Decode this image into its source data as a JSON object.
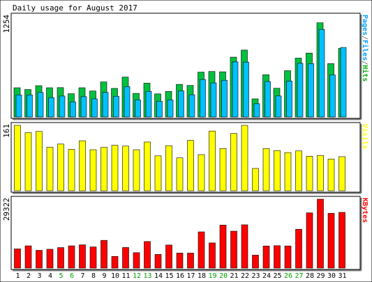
{
  "chart_data": {
    "type": "bar",
    "title": "Daily usage for August 2017",
    "categories": [
      "1",
      "2",
      "3",
      "4",
      "5",
      "6",
      "7",
      "8",
      "9",
      "10",
      "11",
      "12",
      "13",
      "14",
      "15",
      "16",
      "17",
      "18",
      "19",
      "20",
      "21",
      "22",
      "23",
      "24",
      "25",
      "26",
      "27",
      "28",
      "29",
      "30",
      "31"
    ],
    "weekend_days": [
      "5",
      "6",
      "12",
      "13",
      "19",
      "20",
      "26",
      "27"
    ],
    "panels": [
      {
        "id": "hits-panel",
        "ymax_label": "1254",
        "ymax": 1254,
        "legend": [
          {
            "text": "Pages",
            "color": "#00a0ff"
          },
          {
            "text": "/",
            "color": "#808080"
          },
          {
            "text": "Files",
            "color": "#00a0ff"
          },
          {
            "text": "/",
            "color": "#808080"
          },
          {
            "text": "Hits",
            "color": "#00b000"
          }
        ],
        "series": [
          {
            "name": "Hits",
            "color": "#00c040",
            "values": [
              363,
              341,
              389,
              363,
              365,
              289,
              363,
              323,
              435,
              355,
              496,
              293,
              420,
              287,
              318,
              405,
              392,
              557,
              565,
              561,
              743,
              831,
              225,
              525,
              357,
              575,
              731,
              794,
              1170,
              663,
              852
            ]
          },
          {
            "name": "Files",
            "color": "#00c0ff",
            "values": [
              274,
              274,
              305,
              241,
              260,
              188,
              252,
              225,
              305,
              257,
              377,
              212,
              318,
              195,
              212,
              325,
              276,
              466,
              423,
              456,
              684,
              682,
              165,
              441,
              261,
              447,
              667,
              663,
              1088,
              522,
              864
            ]
          }
        ]
      },
      {
        "id": "visits-panel",
        "ymax_label": "161",
        "ymax": 161,
        "legend": [
          {
            "text": "Visits",
            "color": "#ffff00"
          }
        ],
        "series": [
          {
            "name": "Visits",
            "color": "#ffff00",
            "values": [
              161,
              143,
              146,
              107,
              115,
              102,
              123,
              101,
              107,
              112,
              110,
              101,
              120,
              86,
              111,
              81,
              124,
              89,
              147,
              104,
              141,
              161,
              55,
              104,
              99,
              94,
              98,
              85,
              87,
              78,
              84
            ]
          }
        ]
      },
      {
        "id": "kbytes-panel",
        "ymax_label": "29322",
        "ymax": 29322,
        "legend": [
          {
            "text": "KBytes",
            "color": "#ff0000"
          }
        ],
        "series": [
          {
            "name": "KBytes",
            "color": "#ff0000",
            "values": [
              8150,
              9460,
              7560,
              8010,
              8720,
              9460,
              9900,
              9000,
              11800,
              4960,
              8750,
              6560,
              11300,
              5810,
              9810,
              6390,
              6380,
              15400,
              10700,
              18300,
              15700,
              18400,
              5500,
              9390,
              9530,
              9410,
              16500,
              23500,
              29322,
              23300,
              23700
            ]
          }
        ]
      }
    ]
  }
}
